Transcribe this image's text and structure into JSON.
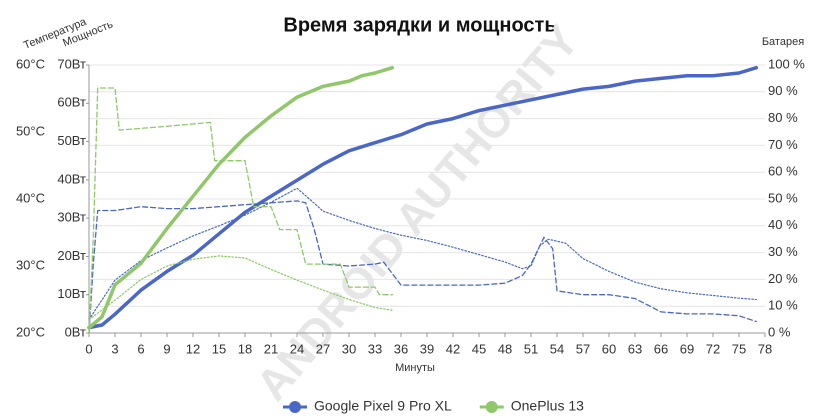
{
  "chart_data": {
    "type": "line",
    "title": "Время зарядки и мощность",
    "watermark": "ANDROID AUTHORITY",
    "x_label": "Минуты",
    "xlim": [
      0,
      78
    ],
    "xticks": [
      0,
      3,
      6,
      9,
      12,
      15,
      18,
      21,
      24,
      27,
      30,
      33,
      36,
      39,
      42,
      45,
      48,
      51,
      54,
      57,
      60,
      63,
      66,
      69,
      72,
      75,
      78
    ],
    "temperature_axis": {
      "label": "Температура",
      "lim": [
        20,
        60
      ],
      "ticks": [
        {
          "value": 20,
          "label": "20°C"
        },
        {
          "value": 30,
          "label": "30°C"
        },
        {
          "value": 40,
          "label": "40°C"
        },
        {
          "value": 50,
          "label": "50°C"
        },
        {
          "value": 60,
          "label": "60°C"
        }
      ]
    },
    "power_axis": {
      "label": "Мощность",
      "lim": [
        0,
        70
      ],
      "ticks": [
        {
          "value": 0,
          "label": "0Вт"
        },
        {
          "value": 10,
          "label": "10Вт"
        },
        {
          "value": 20,
          "label": "20Вт"
        },
        {
          "value": 30,
          "label": "30Вт"
        },
        {
          "value": 40,
          "label": "40Вт"
        },
        {
          "value": 50,
          "label": "50Вт"
        },
        {
          "value": 60,
          "label": "60Вт"
        },
        {
          "value": 70,
          "label": "70Вт"
        }
      ]
    },
    "battery_axis": {
      "label": "Батарея",
      "lim": [
        0,
        100
      ],
      "grid": true,
      "ticks": [
        {
          "value": 0,
          "label": "0 %"
        },
        {
          "value": 10,
          "label": "10 %"
        },
        {
          "value": 20,
          "label": "20 %"
        },
        {
          "value": 30,
          "label": "30 %"
        },
        {
          "value": 40,
          "label": "40 %"
        },
        {
          "value": 50,
          "label": "50 %"
        },
        {
          "value": 60,
          "label": "60 %"
        },
        {
          "value": 70,
          "label": "70 %"
        },
        {
          "value": 80,
          "label": "80 %"
        },
        {
          "value": 90,
          "label": "90 %"
        },
        {
          "value": 100,
          "label": "100 %"
        }
      ]
    },
    "legend": "bottom",
    "series": [
      {
        "name": "Google Pixel 9 Pro XL",
        "color": "#4a67c8",
        "battery": {
          "x": [
            0,
            1.5,
            3,
            6,
            9,
            12,
            15,
            18,
            21,
            24,
            27,
            30,
            33,
            36,
            39,
            42,
            45,
            48,
            51,
            54,
            57,
            60,
            63,
            66,
            69,
            72,
            75,
            77
          ],
          "values": [
            2,
            3,
            7,
            16,
            23,
            29,
            37,
            45,
            51,
            57,
            63,
            68,
            71,
            74,
            78,
            80,
            83,
            85,
            87,
            89,
            91,
            92,
            94,
            95,
            96,
            96,
            97,
            99
          ]
        },
        "power": {
          "x": [
            0,
            0.5,
            1,
            3,
            6,
            9,
            12,
            15,
            18,
            21,
            24,
            25,
            26,
            27,
            30,
            33,
            34,
            36,
            39,
            42,
            45,
            48,
            50,
            51,
            52.5,
            53.5,
            54,
            57,
            60,
            63,
            66,
            69,
            72,
            75,
            77
          ],
          "values": [
            0,
            18,
            32,
            32,
            33,
            32.5,
            32.5,
            33,
            33.5,
            34,
            34.5,
            34,
            27,
            18,
            17.5,
            18,
            18.5,
            12.5,
            12.5,
            12.5,
            12.5,
            13,
            15,
            18,
            25,
            22,
            11,
            10,
            10,
            9,
            5.5,
            5,
            5,
            4.5,
            3
          ]
        },
        "temperature": {
          "x": [
            0,
            3,
            6,
            9,
            12,
            15,
            18,
            21,
            24,
            25,
            27,
            30,
            33,
            36,
            39,
            42,
            45,
            48,
            50,
            51,
            52,
            53,
            55,
            57,
            60,
            63,
            66,
            69,
            72,
            75,
            77
          ],
          "values": [
            22,
            27.9,
            30.8,
            32.7,
            34.5,
            36,
            37.6,
            39.5,
            41.6,
            40.5,
            38.2,
            36.8,
            35.6,
            34.6,
            33.8,
            32.8,
            31.7,
            30.6,
            29.6,
            30,
            33,
            34,
            33.4,
            31.1,
            29.2,
            27.6,
            26.6,
            26,
            25.6,
            25.2,
            25
          ]
        }
      },
      {
        "name": "OnePlus 13",
        "color": "#8fc76a",
        "battery": {
          "x": [
            0,
            1.5,
            3,
            6,
            9,
            12,
            15,
            18,
            21,
            24,
            27,
            30,
            31.5,
            33,
            35
          ],
          "values": [
            2,
            6,
            18,
            26,
            39,
            51,
            63,
            73,
            81,
            88,
            92,
            94,
            96,
            97,
            99
          ]
        },
        "power": {
          "x": [
            0,
            0.5,
            1,
            3,
            3.5,
            9,
            14,
            14.5,
            18,
            19,
            21,
            22,
            24,
            25,
            29,
            30,
            33,
            33.5,
            35
          ],
          "values": [
            0,
            25,
            64,
            64,
            53,
            54,
            55,
            45,
            45,
            33,
            33,
            27,
            27,
            18,
            18,
            12,
            12,
            10,
            10
          ]
        },
        "temperature": {
          "x": [
            0,
            3,
            6,
            9,
            12,
            15,
            18,
            21,
            24,
            27,
            30,
            33,
            35
          ],
          "values": [
            22,
            24.9,
            28,
            30,
            31,
            31.5,
            31.2,
            29.5,
            27.9,
            26.4,
            25,
            23.8,
            23.4
          ]
        }
      }
    ]
  }
}
